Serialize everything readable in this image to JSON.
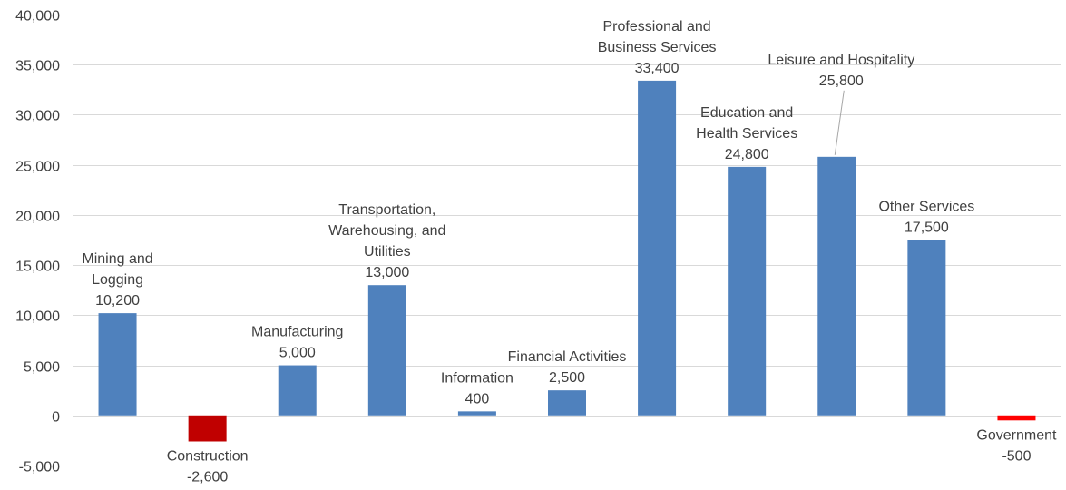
{
  "chart_data": {
    "type": "bar",
    "title": "",
    "xlabel": "",
    "ylabel": "",
    "ylim": [
      -5000,
      40000
    ],
    "yticks": [
      "-5,000",
      "0",
      "5,000",
      "10,000",
      "15,000",
      "20,000",
      "25,000",
      "30,000",
      "35,000",
      "40,000"
    ],
    "grid": true,
    "legend": "none",
    "colors": {
      "positive": "#4f81bd",
      "construction": "#c00000",
      "government": "#ff0000"
    },
    "bars": [
      {
        "category": "Mining and Logging",
        "lines": [
          "Mining and",
          "Logging"
        ],
        "value": 10200,
        "value_label": "10,200",
        "color": "#4f81bd"
      },
      {
        "category": "Construction",
        "lines": [
          "Construction"
        ],
        "value": -2600,
        "value_label": "-2,600",
        "color": "#c00000"
      },
      {
        "category": "Manufacturing",
        "lines": [
          "Manufacturing"
        ],
        "value": 5000,
        "value_label": "5,000",
        "color": "#4f81bd"
      },
      {
        "category": "Transportation, Warehousing, and Utilities",
        "lines": [
          "Transportation,",
          "Warehousing, and",
          "Utilities"
        ],
        "value": 13000,
        "value_label": "13,000",
        "color": "#4f81bd"
      },
      {
        "category": "Information",
        "lines": [
          "Information"
        ],
        "value": 400,
        "value_label": "400",
        "color": "#4f81bd"
      },
      {
        "category": "Financial Activities",
        "lines": [
          "Financial Activities"
        ],
        "value": 2500,
        "value_label": "2,500",
        "color": "#4f81bd"
      },
      {
        "category": "Professional and Business Services",
        "lines": [
          "Professional and",
          "Business Services"
        ],
        "value": 33400,
        "value_label": "33,400",
        "color": "#4f81bd"
      },
      {
        "category": "Education and Health Services",
        "lines": [
          "Education and",
          "Health Services"
        ],
        "value": 24800,
        "value_label": "24,800",
        "color": "#4f81bd"
      },
      {
        "category": "Leisure and Hospitality",
        "lines": [
          "Leisure and Hospitality"
        ],
        "value": 25800,
        "value_label": "25,800",
        "color": "#4f81bd"
      },
      {
        "category": "Other Services",
        "lines": [
          "Other Services"
        ],
        "value": 17500,
        "value_label": "17,500",
        "color": "#4f81bd"
      },
      {
        "category": "Government",
        "lines": [
          "Government"
        ],
        "value": -500,
        "value_label": "-500",
        "color": "#ff0000"
      }
    ]
  }
}
